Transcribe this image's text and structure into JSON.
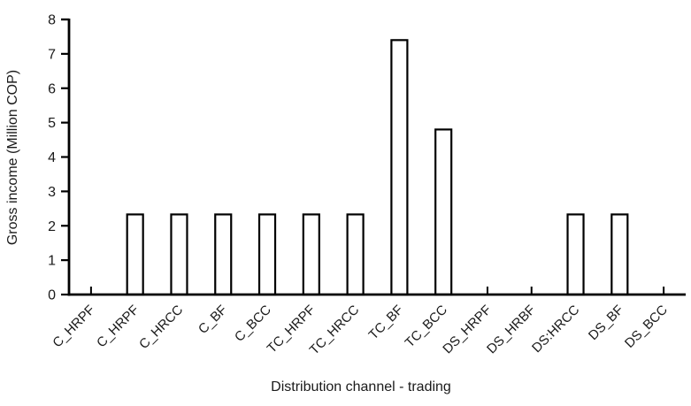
{
  "figure": {
    "background": "#ffffff",
    "ink_color": "#000000",
    "text_color": "#1a1a1a"
  },
  "chart_data": {
    "type": "bar",
    "title": "",
    "xlabel": "Distribution channel - trading",
    "ylabel": "Gross income (Million COP)",
    "categories": [
      "C_HRPF",
      "C_HRPF",
      "C_HRCC",
      "C_BF",
      "C_BCC",
      "TC_HRPF",
      "TC_HRCC",
      "TC_BF",
      "TC_BCC",
      "DS_HRPF",
      "DS_HRBF",
      "DS:HRCC",
      "DS_BF",
      "DS_BCC"
    ],
    "values": [
      0,
      2.33,
      2.33,
      2.33,
      2.33,
      2.33,
      2.33,
      7.4,
      4.8,
      0,
      0,
      2.33,
      2.33,
      0
    ],
    "yticks": [
      0,
      1,
      2,
      3,
      4,
      5,
      6,
      7,
      8
    ],
    "ylim": [
      0,
      8
    ],
    "grid": false,
    "legend": "none",
    "bar_fill": "#ffffff",
    "bar_outline": "#000000",
    "x_label_rotation_deg": -45
  }
}
